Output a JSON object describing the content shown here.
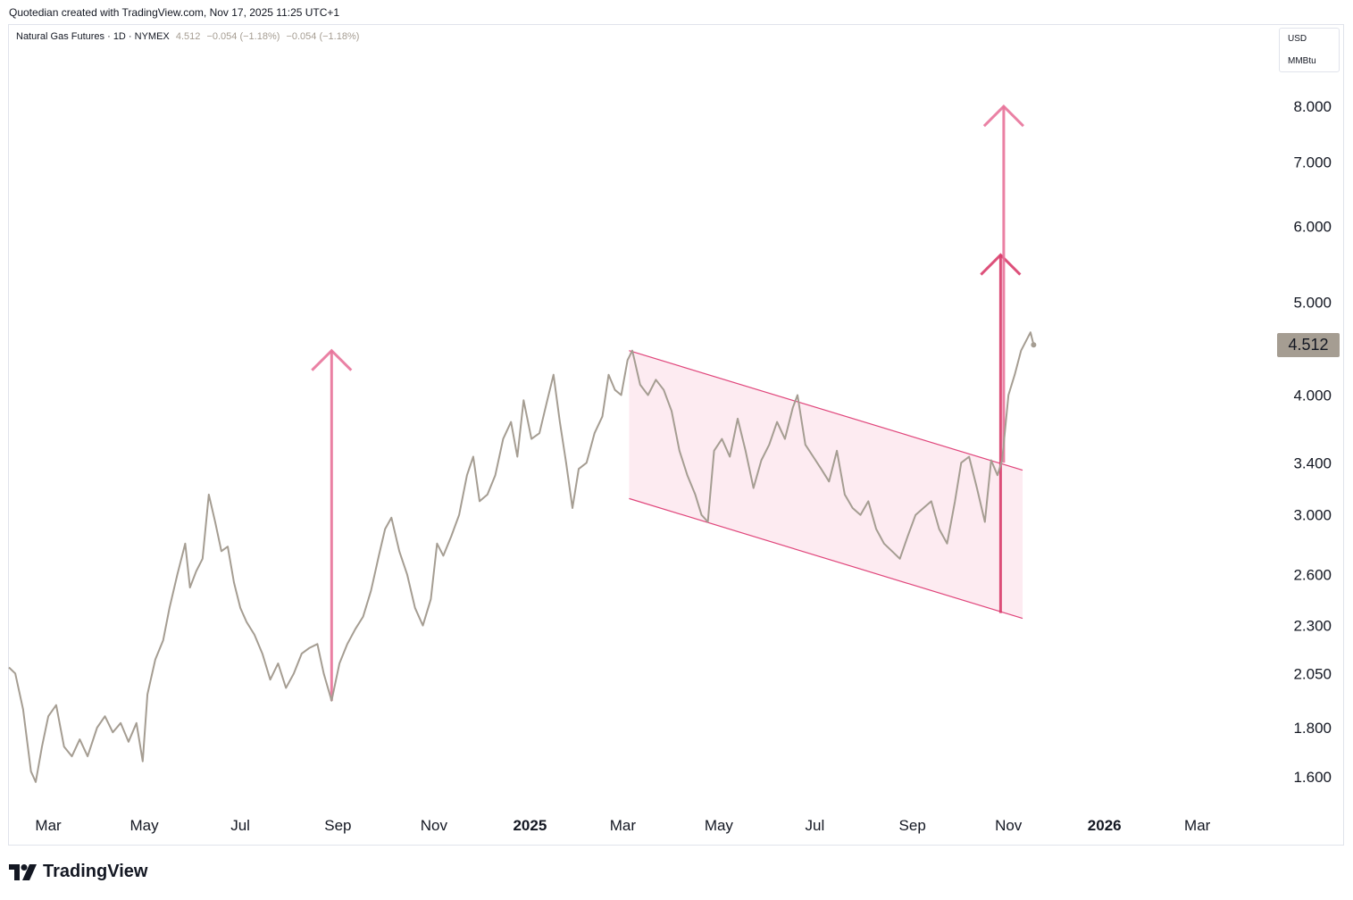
{
  "caption": "Quotedian created with TradingView.com, Nov 17, 2025 11:25 UTC+1",
  "legend": {
    "symbol": "Natural Gas Futures · 1D · NYMEX",
    "price": "4.512",
    "change": "−0.054 (−1.18%)",
    "change2": "−0.054 (−1.18%)"
  },
  "units": {
    "currency": "USD",
    "unit": "MMBtu"
  },
  "last_price_label": "4.512",
  "footer_brand": "TradingView",
  "colors": {
    "line": "#a59d92",
    "channel": "#e0457b",
    "channel_fill": "#fce4ec",
    "arrow": "#e8739a",
    "arrow_dark": "#d93d6b"
  },
  "chart_data": {
    "type": "line",
    "title": "",
    "scale": "log",
    "ylim": [
      1.5,
      8.7
    ],
    "xlim": [
      "2024-02-05",
      "2026-04-15"
    ],
    "y_ticks": [
      "8.000",
      "7.000",
      "6.000",
      "5.000",
      "4.000",
      "3.400",
      "3.000",
      "2.600",
      "2.300",
      "2.050",
      "1.800",
      "1.600"
    ],
    "x_ticks": [
      {
        "date": "2024-03-01",
        "label": "Mar",
        "bold": false
      },
      {
        "date": "2024-05-01",
        "label": "May",
        "bold": false
      },
      {
        "date": "2024-07-01",
        "label": "Jul",
        "bold": false
      },
      {
        "date": "2024-09-01",
        "label": "Sep",
        "bold": false
      },
      {
        "date": "2024-11-01",
        "label": "Nov",
        "bold": false
      },
      {
        "date": "2025-01-01",
        "label": "2025",
        "bold": true
      },
      {
        "date": "2025-03-01",
        "label": "Mar",
        "bold": false
      },
      {
        "date": "2025-05-01",
        "label": "May",
        "bold": false
      },
      {
        "date": "2025-07-01",
        "label": "Jul",
        "bold": false
      },
      {
        "date": "2025-09-01",
        "label": "Sep",
        "bold": false
      },
      {
        "date": "2025-11-01",
        "label": "Nov",
        "bold": false
      },
      {
        "date": "2026-01-01",
        "label": "2026",
        "bold": true
      },
      {
        "date": "2026-03-01",
        "label": "Mar",
        "bold": false
      }
    ],
    "series": [
      {
        "values": [
          [
            "2024-02-05",
            2.08
          ],
          [
            "2024-02-09",
            2.05
          ],
          [
            "2024-02-14",
            1.88
          ],
          [
            "2024-02-19",
            1.62
          ],
          [
            "2024-02-22",
            1.58
          ],
          [
            "2024-02-26",
            1.72
          ],
          [
            "2024-03-01",
            1.85
          ],
          [
            "2024-03-06",
            1.9
          ],
          [
            "2024-03-11",
            1.72
          ],
          [
            "2024-03-16",
            1.68
          ],
          [
            "2024-03-21",
            1.75
          ],
          [
            "2024-03-26",
            1.68
          ],
          [
            "2024-04-01",
            1.8
          ],
          [
            "2024-04-06",
            1.85
          ],
          [
            "2024-04-11",
            1.78
          ],
          [
            "2024-04-16",
            1.82
          ],
          [
            "2024-04-21",
            1.74
          ],
          [
            "2024-04-26",
            1.82
          ],
          [
            "2024-04-30",
            1.66
          ],
          [
            "2024-05-03",
            1.95
          ],
          [
            "2024-05-08",
            2.12
          ],
          [
            "2024-05-13",
            2.22
          ],
          [
            "2024-05-17",
            2.4
          ],
          [
            "2024-05-22",
            2.6
          ],
          [
            "2024-05-27",
            2.8
          ],
          [
            "2024-05-30",
            2.52
          ],
          [
            "2024-06-03",
            2.62
          ],
          [
            "2024-06-07",
            2.7
          ],
          [
            "2024-06-11",
            3.15
          ],
          [
            "2024-06-15",
            2.95
          ],
          [
            "2024-06-19",
            2.75
          ],
          [
            "2024-06-23",
            2.78
          ],
          [
            "2024-06-27",
            2.55
          ],
          [
            "2024-07-01",
            2.4
          ],
          [
            "2024-07-05",
            2.32
          ],
          [
            "2024-07-10",
            2.25
          ],
          [
            "2024-07-15",
            2.15
          ],
          [
            "2024-07-20",
            2.02
          ],
          [
            "2024-07-25",
            2.1
          ],
          [
            "2024-07-30",
            1.98
          ],
          [
            "2024-08-04",
            2.05
          ],
          [
            "2024-08-09",
            2.15
          ],
          [
            "2024-08-14",
            2.18
          ],
          [
            "2024-08-19",
            2.2
          ],
          [
            "2024-08-23",
            2.05
          ],
          [
            "2024-08-28",
            1.92
          ],
          [
            "2024-09-02",
            2.1
          ],
          [
            "2024-09-07",
            2.2
          ],
          [
            "2024-09-12",
            2.28
          ],
          [
            "2024-09-17",
            2.35
          ],
          [
            "2024-09-22",
            2.5
          ],
          [
            "2024-09-27",
            2.72
          ],
          [
            "2024-10-01",
            2.9
          ],
          [
            "2024-10-05",
            2.98
          ],
          [
            "2024-10-10",
            2.75
          ],
          [
            "2024-10-15",
            2.6
          ],
          [
            "2024-10-20",
            2.4
          ],
          [
            "2024-10-25",
            2.3
          ],
          [
            "2024-10-30",
            2.45
          ],
          [
            "2024-11-03",
            2.8
          ],
          [
            "2024-11-07",
            2.72
          ],
          [
            "2024-11-12",
            2.85
          ],
          [
            "2024-11-17",
            3.0
          ],
          [
            "2024-11-22",
            3.3
          ],
          [
            "2024-11-26",
            3.45
          ],
          [
            "2024-11-30",
            3.1
          ],
          [
            "2024-12-05",
            3.15
          ],
          [
            "2024-12-10",
            3.3
          ],
          [
            "2024-12-15",
            3.6
          ],
          [
            "2024-12-20",
            3.75
          ],
          [
            "2024-12-24",
            3.45
          ],
          [
            "2024-12-28",
            3.95
          ],
          [
            "2025-01-02",
            3.6
          ],
          [
            "2025-01-07",
            3.65
          ],
          [
            "2025-01-12",
            3.95
          ],
          [
            "2025-01-16",
            4.2
          ],
          [
            "2025-01-20",
            3.75
          ],
          [
            "2025-01-24",
            3.4
          ],
          [
            "2025-01-28",
            3.05
          ],
          [
            "2025-02-01",
            3.35
          ],
          [
            "2025-02-06",
            3.4
          ],
          [
            "2025-02-11",
            3.65
          ],
          [
            "2025-02-16",
            3.8
          ],
          [
            "2025-02-20",
            4.2
          ],
          [
            "2025-02-24",
            4.05
          ],
          [
            "2025-02-28",
            4.0
          ],
          [
            "2025-03-04",
            4.35
          ],
          [
            "2025-03-07",
            4.45
          ],
          [
            "2025-03-12",
            4.1
          ],
          [
            "2025-03-17",
            4.0
          ],
          [
            "2025-03-22",
            4.15
          ],
          [
            "2025-03-27",
            4.05
          ],
          [
            "2025-04-01",
            3.85
          ],
          [
            "2025-04-06",
            3.5
          ],
          [
            "2025-04-11",
            3.3
          ],
          [
            "2025-04-16",
            3.15
          ],
          [
            "2025-04-20",
            3.0
          ],
          [
            "2025-04-24",
            2.95
          ],
          [
            "2025-04-28",
            3.5
          ],
          [
            "2025-05-03",
            3.6
          ],
          [
            "2025-05-08",
            3.45
          ],
          [
            "2025-05-13",
            3.78
          ],
          [
            "2025-05-18",
            3.5
          ],
          [
            "2025-05-23",
            3.2
          ],
          [
            "2025-05-28",
            3.42
          ],
          [
            "2025-06-02",
            3.55
          ],
          [
            "2025-06-07",
            3.75
          ],
          [
            "2025-06-12",
            3.6
          ],
          [
            "2025-06-17",
            3.88
          ],
          [
            "2025-06-20",
            4.0
          ],
          [
            "2025-06-25",
            3.55
          ],
          [
            "2025-06-30",
            3.45
          ],
          [
            "2025-07-05",
            3.35
          ],
          [
            "2025-07-10",
            3.25
          ],
          [
            "2025-07-15",
            3.5
          ],
          [
            "2025-07-20",
            3.15
          ],
          [
            "2025-07-25",
            3.05
          ],
          [
            "2025-07-30",
            3.0
          ],
          [
            "2025-08-04",
            3.1
          ],
          [
            "2025-08-09",
            2.9
          ],
          [
            "2025-08-14",
            2.8
          ],
          [
            "2025-08-19",
            2.75
          ],
          [
            "2025-08-24",
            2.7
          ],
          [
            "2025-08-29",
            2.85
          ],
          [
            "2025-09-03",
            3.0
          ],
          [
            "2025-09-08",
            3.05
          ],
          [
            "2025-09-13",
            3.1
          ],
          [
            "2025-09-18",
            2.9
          ],
          [
            "2025-09-23",
            2.8
          ],
          [
            "2025-09-28",
            3.1
          ],
          [
            "2025-10-02",
            3.4
          ],
          [
            "2025-10-07",
            3.45
          ],
          [
            "2025-10-12",
            3.2
          ],
          [
            "2025-10-17",
            2.95
          ],
          [
            "2025-10-21",
            3.42
          ],
          [
            "2025-10-25",
            3.3
          ],
          [
            "2025-10-28",
            3.42
          ],
          [
            "2025-11-01",
            4.0
          ],
          [
            "2025-11-05",
            4.2
          ],
          [
            "2025-11-09",
            4.45
          ],
          [
            "2025-11-12",
            4.55
          ],
          [
            "2025-11-15",
            4.65
          ],
          [
            "2025-11-17",
            4.512
          ]
        ]
      }
    ],
    "annotations": {
      "channel": {
        "upper": [
          [
            "2025-03-05",
            4.45
          ],
          [
            "2025-11-10",
            3.34
          ]
        ],
        "lower": [
          [
            "2025-03-05",
            3.12
          ],
          [
            "2025-11-10",
            2.34
          ]
        ]
      },
      "arrows": [
        {
          "x": "2024-08-28",
          "from": 1.92,
          "to": 4.45
        },
        {
          "x": "2025-10-27",
          "from": 2.37,
          "to": 5.6
        },
        {
          "x": "2025-10-29",
          "from": 3.4,
          "to": 8.0
        }
      ]
    }
  }
}
